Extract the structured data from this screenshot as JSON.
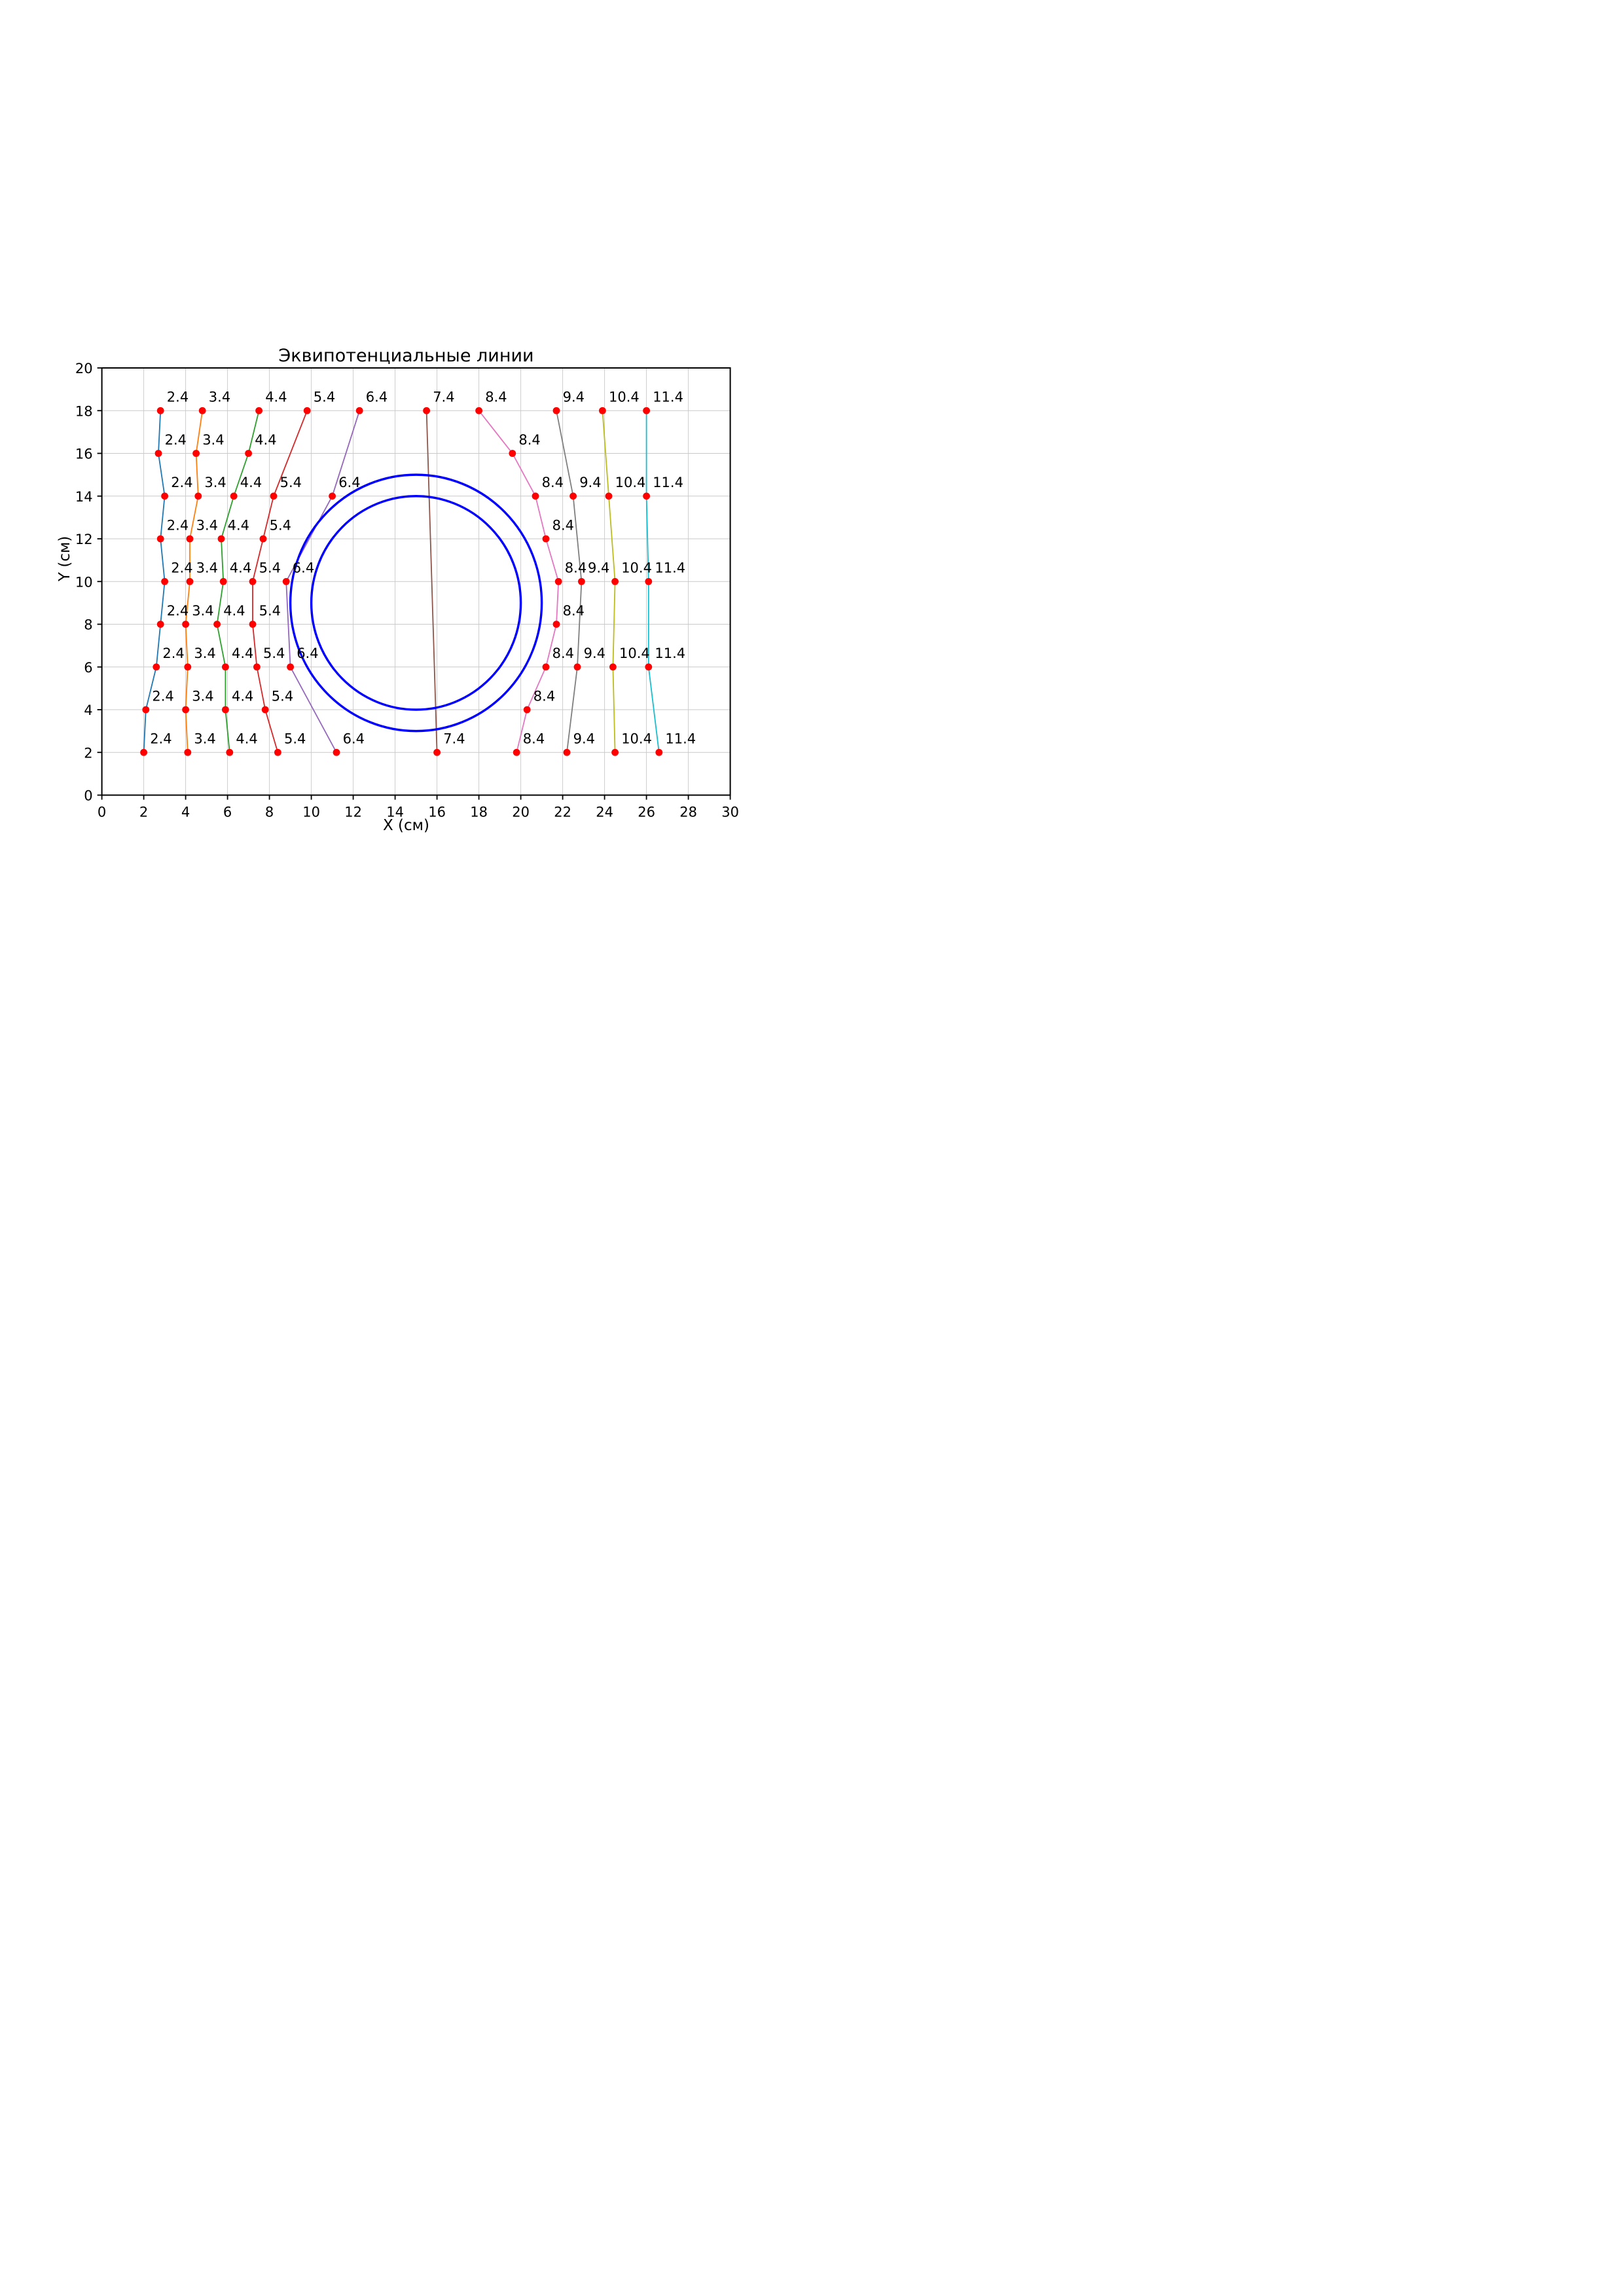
{
  "chart_data": {
    "type": "line",
    "title": "Эквипотенциальные линии",
    "xlabel": "X (см)",
    "ylabel": "Y (см)",
    "xlim": [
      0,
      30
    ],
    "ylim": [
      0,
      20
    ],
    "xticks": [
      0,
      2,
      4,
      6,
      8,
      10,
      12,
      14,
      16,
      18,
      20,
      22,
      24,
      26,
      28,
      30
    ],
    "yticks": [
      0,
      2,
      4,
      6,
      8,
      10,
      12,
      14,
      16,
      18,
      20
    ],
    "grid": true,
    "grid_color": "#c9c9c9",
    "marker_color": "#ff0000",
    "circle_color": "#0000ff",
    "circles": [
      {
        "cx": 15,
        "cy": 9,
        "r": 6
      },
      {
        "cx": 15,
        "cy": 9,
        "r": 5
      }
    ],
    "series": [
      {
        "label": "2.4",
        "color": "#1f77b4",
        "points": [
          [
            2.8,
            18
          ],
          [
            2.7,
            16
          ],
          [
            3.0,
            14
          ],
          [
            2.8,
            12
          ],
          [
            3.0,
            10
          ],
          [
            2.8,
            8
          ],
          [
            2.6,
            6
          ],
          [
            2.1,
            4
          ],
          [
            2.0,
            2
          ]
        ]
      },
      {
        "label": "3.4",
        "color": "#ff7f0e",
        "points": [
          [
            4.8,
            18
          ],
          [
            4.5,
            16
          ],
          [
            4.6,
            14
          ],
          [
            4.2,
            12
          ],
          [
            4.2,
            10
          ],
          [
            4.0,
            8
          ],
          [
            4.1,
            6
          ],
          [
            4.0,
            4
          ],
          [
            4.1,
            2
          ]
        ]
      },
      {
        "label": "4.4",
        "color": "#2ca02c",
        "points": [
          [
            7.5,
            18
          ],
          [
            7.0,
            16
          ],
          [
            6.3,
            14
          ],
          [
            5.7,
            12
          ],
          [
            5.8,
            10
          ],
          [
            5.5,
            8
          ],
          [
            5.9,
            6
          ],
          [
            5.9,
            4
          ],
          [
            6.1,
            2
          ]
        ]
      },
      {
        "label": "5.4",
        "color": "#d62728",
        "points": [
          [
            9.8,
            18
          ],
          [
            8.2,
            14
          ],
          [
            7.7,
            12
          ],
          [
            7.2,
            10
          ],
          [
            7.2,
            8
          ],
          [
            7.4,
            6
          ],
          [
            7.8,
            4
          ],
          [
            8.4,
            2
          ]
        ]
      },
      {
        "label": "6.4",
        "color": "#9467bd",
        "points": [
          [
            12.3,
            18
          ],
          [
            11.0,
            14
          ],
          [
            8.8,
            10
          ],
          [
            9.0,
            6
          ],
          [
            11.2,
            2
          ]
        ]
      },
      {
        "label": "7.4",
        "color": "#8c564b",
        "points": [
          [
            15.5,
            18
          ],
          [
            16.0,
            2
          ]
        ]
      },
      {
        "label": "8.4",
        "color": "#e377c2",
        "points": [
          [
            18.0,
            18
          ],
          [
            19.6,
            16
          ],
          [
            20.7,
            14
          ],
          [
            21.2,
            12
          ],
          [
            21.8,
            10
          ],
          [
            21.7,
            8
          ],
          [
            21.2,
            6
          ],
          [
            20.3,
            4
          ],
          [
            19.8,
            2
          ]
        ]
      },
      {
        "label": "9.4",
        "color": "#7f7f7f",
        "points": [
          [
            21.7,
            18
          ],
          [
            22.5,
            14
          ],
          [
            22.9,
            10
          ],
          [
            22.7,
            6
          ],
          [
            22.2,
            2
          ]
        ]
      },
      {
        "label": "10.4",
        "color": "#bcbd22",
        "points": [
          [
            23.9,
            18
          ],
          [
            24.2,
            14
          ],
          [
            24.5,
            10
          ],
          [
            24.4,
            6
          ],
          [
            24.5,
            2
          ]
        ]
      },
      {
        "label": "11.4",
        "color": "#17becf",
        "points": [
          [
            26.0,
            18
          ],
          [
            26.0,
            14
          ],
          [
            26.1,
            10
          ],
          [
            26.1,
            6
          ],
          [
            26.6,
            2
          ]
        ]
      }
    ],
    "point_label_offset": {
      "dx": 0.3,
      "dy": 0.42
    },
    "legend": "none",
    "axes_box": true
  }
}
